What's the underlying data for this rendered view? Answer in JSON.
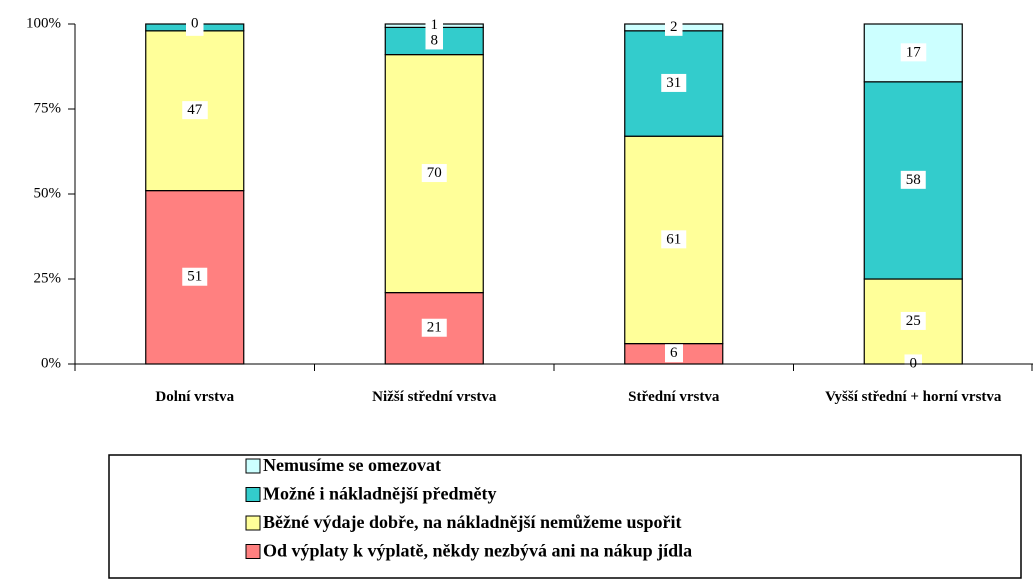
{
  "chart_data": {
    "type": "stacked_bar",
    "categories": [
      "Dolní vrstva",
      "Nižší střední vrstva",
      "Střední vrstva",
      "Vyšší střední + horní vrstva"
    ],
    "series": [
      {
        "name": "Od výplaty k výplatě, někdy nezbývá ani na nákup jídla",
        "color": "#ff8080",
        "values": [
          51,
          21,
          6,
          0
        ]
      },
      {
        "name": "Běžné výdaje dobře, na nákladnější nemůžeme uspořit",
        "color": "#ffff99",
        "values": [
          47,
          70,
          61,
          25
        ]
      },
      {
        "name": "Možné i nákladnější předměty",
        "color": "#33cccc",
        "values": [
          2,
          8,
          31,
          58
        ]
      },
      {
        "name": "Nemusíme se omezovat",
        "color": "#ccffff",
        "values": [
          0,
          1,
          2,
          17
        ]
      }
    ],
    "ylim": [
      0,
      100
    ],
    "yticks": [
      {
        "value": 0,
        "label": "0%"
      },
      {
        "value": 25,
        "label": "25%"
      },
      {
        "value": 50,
        "label": "50%"
      },
      {
        "value": 75,
        "label": "75%"
      },
      {
        "value": 100,
        "label": "100%"
      }
    ]
  }
}
